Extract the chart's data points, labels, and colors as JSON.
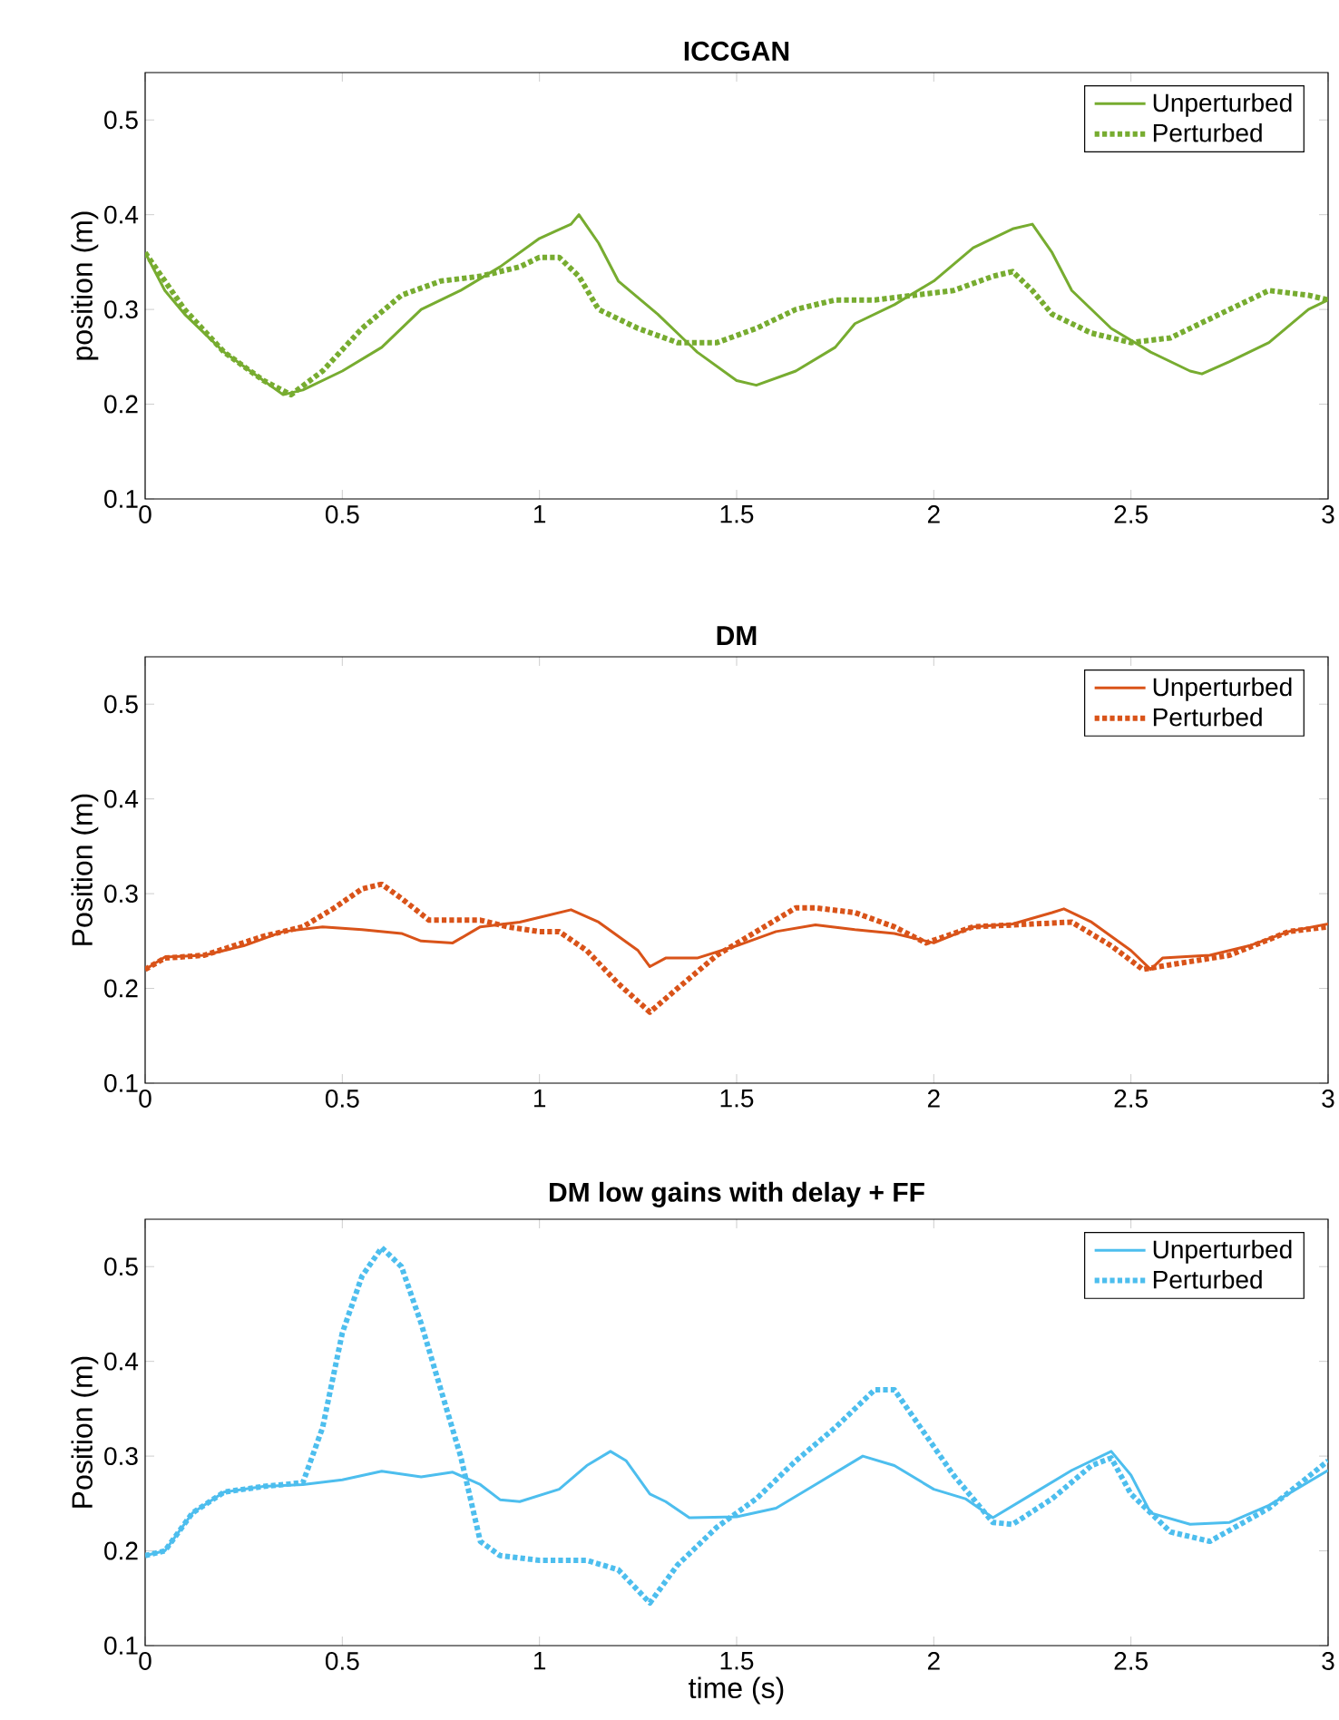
{
  "chart_data": [
    {
      "type": "line",
      "title": "ICCGAN",
      "ylabel": "position (m)",
      "xlim": [
        0,
        3
      ],
      "ylim": [
        0.1,
        0.55
      ],
      "xticks": [
        0,
        0.5,
        1,
        1.5,
        2,
        2.5,
        3
      ],
      "yticks": [
        0.1,
        0.2,
        0.3,
        0.4,
        0.5
      ],
      "legend": "top right",
      "grid": false,
      "series": [
        {
          "name": "Unperturbed",
          "color": "#77ac30",
          "line_style": "solid",
          "x": [
            0,
            0.05,
            0.1,
            0.2,
            0.3,
            0.35,
            0.4,
            0.5,
            0.6,
            0.7,
            0.8,
            0.9,
            1.0,
            1.08,
            1.1,
            1.15,
            1.2,
            1.3,
            1.4,
            1.5,
            1.55,
            1.65,
            1.75,
            1.8,
            1.9,
            2.0,
            2.1,
            2.2,
            2.25,
            2.3,
            2.35,
            2.45,
            2.55,
            2.65,
            2.68,
            2.75,
            2.85,
            2.95,
            3.0
          ],
          "values": [
            0.36,
            0.32,
            0.295,
            0.255,
            0.225,
            0.21,
            0.215,
            0.235,
            0.26,
            0.3,
            0.32,
            0.345,
            0.375,
            0.39,
            0.4,
            0.37,
            0.33,
            0.295,
            0.255,
            0.225,
            0.22,
            0.235,
            0.26,
            0.285,
            0.305,
            0.33,
            0.365,
            0.385,
            0.39,
            0.36,
            0.32,
            0.28,
            0.255,
            0.235,
            0.232,
            0.245,
            0.265,
            0.3,
            0.31
          ]
        },
        {
          "name": "Perturbed",
          "color": "#77ac30",
          "line_style": "dotted",
          "x": [
            0,
            0.1,
            0.2,
            0.3,
            0.37,
            0.45,
            0.55,
            0.65,
            0.75,
            0.85,
            0.95,
            1.0,
            1.05,
            1.1,
            1.15,
            1.25,
            1.35,
            1.45,
            1.55,
            1.65,
            1.75,
            1.85,
            1.95,
            2.05,
            2.15,
            2.2,
            2.25,
            2.3,
            2.4,
            2.5,
            2.6,
            2.7,
            2.8,
            2.85,
            2.95,
            3.0
          ],
          "values": [
            0.36,
            0.3,
            0.255,
            0.225,
            0.21,
            0.235,
            0.28,
            0.315,
            0.33,
            0.335,
            0.345,
            0.355,
            0.355,
            0.335,
            0.3,
            0.28,
            0.265,
            0.265,
            0.28,
            0.3,
            0.31,
            0.31,
            0.315,
            0.32,
            0.335,
            0.34,
            0.32,
            0.295,
            0.275,
            0.265,
            0.27,
            0.29,
            0.31,
            0.32,
            0.315,
            0.31
          ]
        }
      ]
    },
    {
      "type": "line",
      "title": "DM",
      "ylabel": "Position (m)",
      "xlim": [
        0,
        3
      ],
      "ylim": [
        0.1,
        0.55
      ],
      "xticks": [
        0,
        0.5,
        1,
        1.5,
        2,
        2.5,
        3
      ],
      "yticks": [
        0.1,
        0.2,
        0.3,
        0.4,
        0.5
      ],
      "legend": "top right",
      "grid": false,
      "series": [
        {
          "name": "Unperturbed",
          "color": "#d95319",
          "line_style": "solid",
          "x": [
            0,
            0.05,
            0.15,
            0.25,
            0.35,
            0.45,
            0.55,
            0.65,
            0.7,
            0.78,
            0.85,
            0.95,
            1.0,
            1.08,
            1.15,
            1.25,
            1.28,
            1.32,
            1.4,
            1.5,
            1.6,
            1.7,
            1.8,
            1.9,
            2.0,
            2.1,
            2.2,
            2.3,
            2.33,
            2.4,
            2.5,
            2.55,
            2.58,
            2.7,
            2.8,
            2.9,
            3.0
          ],
          "values": [
            0.22,
            0.233,
            0.235,
            0.245,
            0.26,
            0.265,
            0.262,
            0.258,
            0.25,
            0.248,
            0.265,
            0.27,
            0.275,
            0.283,
            0.27,
            0.24,
            0.223,
            0.232,
            0.232,
            0.245,
            0.26,
            0.267,
            0.262,
            0.258,
            0.248,
            0.265,
            0.268,
            0.28,
            0.284,
            0.27,
            0.24,
            0.22,
            0.232,
            0.235,
            0.245,
            0.26,
            0.268
          ]
        },
        {
          "name": "Perturbed",
          "color": "#d95319",
          "line_style": "dotted",
          "x": [
            0,
            0.05,
            0.15,
            0.3,
            0.4,
            0.48,
            0.55,
            0.6,
            0.65,
            0.72,
            0.85,
            0.92,
            1.0,
            1.05,
            1.12,
            1.2,
            1.28,
            1.35,
            1.45,
            1.55,
            1.65,
            1.7,
            1.8,
            1.9,
            1.98,
            2.1,
            2.25,
            2.35,
            2.45,
            2.53,
            2.6,
            2.75,
            2.9,
            3.0
          ],
          "values": [
            0.22,
            0.232,
            0.235,
            0.255,
            0.265,
            0.285,
            0.305,
            0.31,
            0.295,
            0.272,
            0.272,
            0.265,
            0.26,
            0.26,
            0.24,
            0.205,
            0.175,
            0.2,
            0.235,
            0.26,
            0.285,
            0.285,
            0.28,
            0.265,
            0.248,
            0.265,
            0.268,
            0.27,
            0.245,
            0.22,
            0.225,
            0.235,
            0.26,
            0.265
          ]
        }
      ]
    },
    {
      "type": "line",
      "title": "DM low gains with delay + FF",
      "xlabel": "time (s)",
      "ylabel": "Position (m)",
      "xlim": [
        0,
        3
      ],
      "ylim": [
        0.1,
        0.55
      ],
      "xticks": [
        0,
        0.5,
        1,
        1.5,
        2,
        2.5,
        3
      ],
      "yticks": [
        0.1,
        0.2,
        0.3,
        0.4,
        0.5
      ],
      "legend": "top right",
      "grid": false,
      "series": [
        {
          "name": "Unperturbed",
          "color": "#4dbeee",
          "line_style": "solid",
          "x": [
            0,
            0.05,
            0.12,
            0.2,
            0.3,
            0.4,
            0.5,
            0.6,
            0.7,
            0.78,
            0.85,
            0.9,
            0.95,
            1.05,
            1.12,
            1.18,
            1.22,
            1.28,
            1.32,
            1.38,
            1.5,
            1.6,
            1.7,
            1.82,
            1.9,
            2.0,
            2.08,
            2.15,
            2.25,
            2.35,
            2.45,
            2.5,
            2.55,
            2.65,
            2.75,
            2.85,
            3.0
          ],
          "values": [
            0.195,
            0.2,
            0.24,
            0.262,
            0.268,
            0.27,
            0.275,
            0.284,
            0.278,
            0.283,
            0.27,
            0.254,
            0.252,
            0.265,
            0.29,
            0.305,
            0.295,
            0.26,
            0.252,
            0.235,
            0.236,
            0.245,
            0.27,
            0.3,
            0.29,
            0.265,
            0.255,
            0.235,
            0.26,
            0.285,
            0.305,
            0.28,
            0.24,
            0.228,
            0.23,
            0.248,
            0.285
          ]
        },
        {
          "name": "Perturbed",
          "color": "#4dbeee",
          "line_style": "dotted",
          "x": [
            0,
            0.05,
            0.12,
            0.2,
            0.3,
            0.4,
            0.45,
            0.5,
            0.55,
            0.6,
            0.65,
            0.7,
            0.75,
            0.8,
            0.85,
            0.9,
            1.0,
            1.12,
            1.2,
            1.28,
            1.35,
            1.45,
            1.55,
            1.65,
            1.75,
            1.85,
            1.9,
            1.95,
            2.05,
            2.15,
            2.2,
            2.3,
            2.4,
            2.45,
            2.5,
            2.6,
            2.7,
            2.85,
            3.0
          ],
          "values": [
            0.195,
            0.2,
            0.24,
            0.262,
            0.268,
            0.272,
            0.33,
            0.43,
            0.49,
            0.52,
            0.5,
            0.44,
            0.37,
            0.3,
            0.21,
            0.195,
            0.19,
            0.19,
            0.18,
            0.145,
            0.185,
            0.225,
            0.255,
            0.295,
            0.33,
            0.37,
            0.37,
            0.34,
            0.28,
            0.23,
            0.228,
            0.255,
            0.29,
            0.298,
            0.26,
            0.22,
            0.21,
            0.245,
            0.295
          ]
        }
      ]
    }
  ]
}
